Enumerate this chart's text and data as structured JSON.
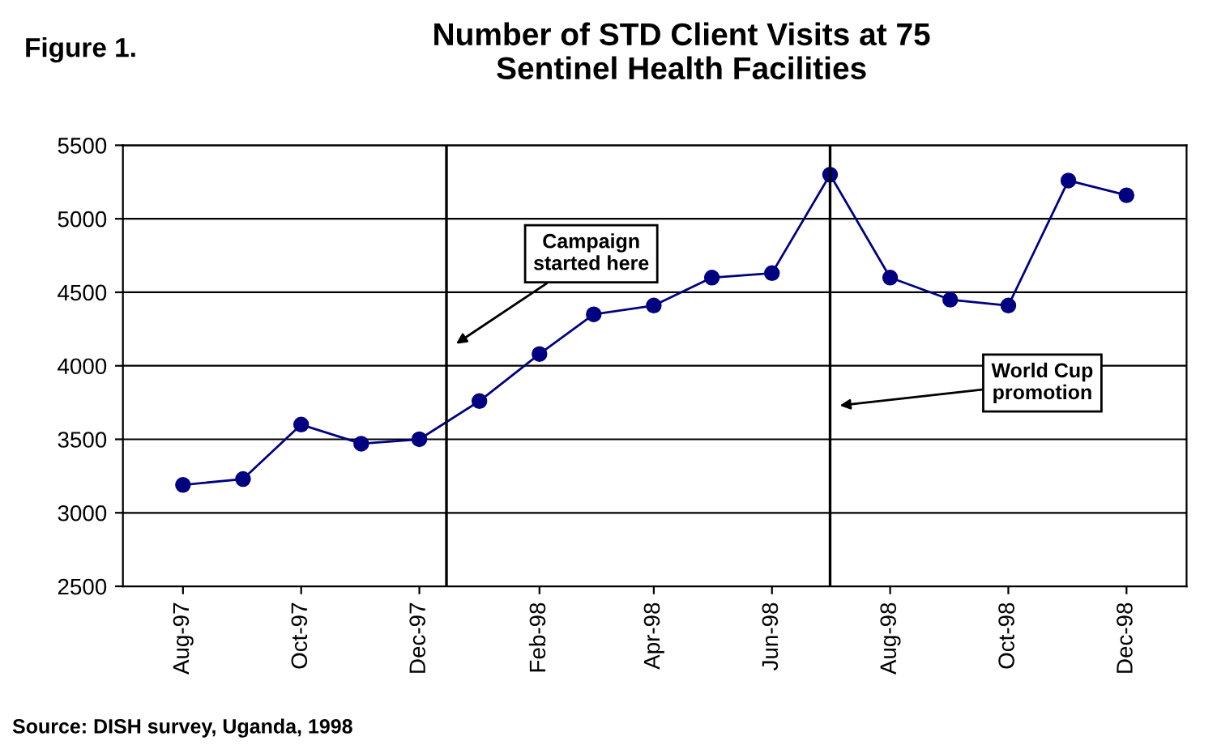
{
  "chart_data": {
    "type": "line",
    "title": "Number of STD Client Visits at 75\nSentinel Health Facilities",
    "x": [
      "1997-08",
      "1997-09",
      "1997-10",
      "1997-11",
      "1997-12",
      "1998-01",
      "1998-02",
      "1998-03",
      "1998-04",
      "1998-05",
      "1998-06",
      "1998-07",
      "1998-08",
      "1998-09",
      "1998-10",
      "1998-11",
      "1998-12"
    ],
    "series": [
      {
        "color": "#000080",
        "values": [
          3190,
          3230,
          3600,
          3470,
          3500,
          3760,
          4080,
          4350,
          4410,
          4600,
          4630,
          5300,
          4600,
          4450,
          4410,
          5260,
          5160
        ]
      }
    ],
    "xlim": [
      "1997-07",
      "1999-01"
    ],
    "xticks": [
      {
        "value": "1997-08",
        "label": "Aug-97"
      },
      {
        "value": "1997-10",
        "label": "Oct-97"
      },
      {
        "value": "1997-12",
        "label": "Dec-97"
      },
      {
        "value": "1998-02",
        "label": "Feb-98"
      },
      {
        "value": "1998-04",
        "label": "Apr-98"
      },
      {
        "value": "1998-06",
        "label": "Jun-98"
      },
      {
        "value": "1998-08",
        "label": "Aug-98"
      },
      {
        "value": "1998-10",
        "label": "Oct-98"
      },
      {
        "value": "1998-12",
        "label": "Dec-98"
      }
    ],
    "ylim": [
      2500,
      5500
    ],
    "yticks": [
      2500,
      3000,
      3500,
      4000,
      4500,
      5000,
      5500
    ],
    "grid": "y",
    "marker": "circle",
    "line_style": "solid",
    "ref_lines": [
      {
        "axis": "x",
        "value": "1997-12-15",
        "color": "#000000"
      },
      {
        "axis": "x",
        "value": "1998-07",
        "color": "#000000"
      }
    ],
    "annotations": [
      "Figure 1.",
      "Campaign\nstarted here",
      "World Cup\npromotion",
      "Source: DISH survey, Uganda, 1998"
    ]
  }
}
